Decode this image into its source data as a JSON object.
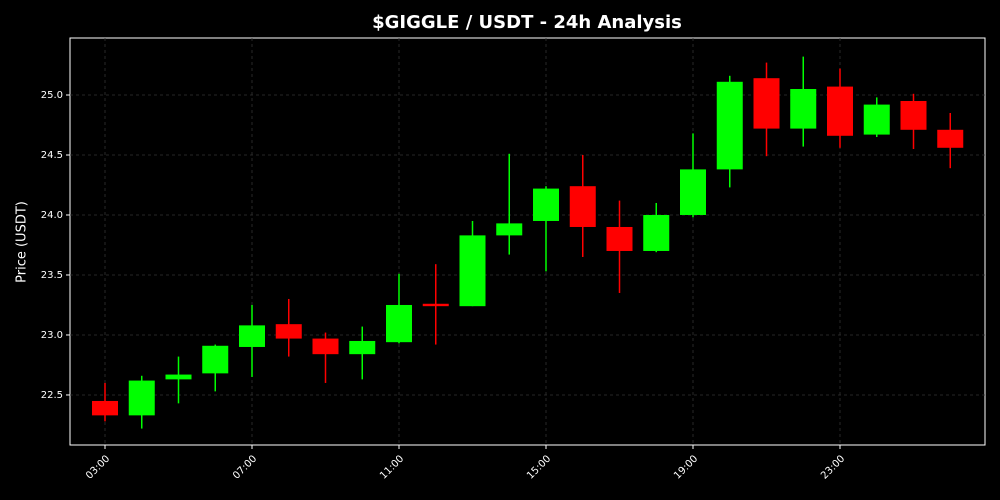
{
  "chart_data": {
    "type": "candlestick",
    "title": "$GIGGLE / USDT - 24h Analysis",
    "y_label": "Price (USDT)",
    "categories": [
      "03:00",
      null,
      null,
      null,
      "07:00",
      null,
      null,
      null,
      "11:00",
      null,
      null,
      null,
      "15:00",
      null,
      null,
      null,
      "19:00",
      null,
      null,
      null,
      "23:00",
      null,
      null,
      null
    ],
    "open": [
      22.45,
      22.33,
      22.63,
      22.68,
      22.9,
      23.09,
      22.97,
      22.84,
      22.94,
      23.26,
      23.24,
      23.83,
      23.95,
      24.24,
      23.9,
      23.7,
      24.0,
      24.38,
      25.14,
      24.72,
      25.07,
      24.67,
      24.95,
      24.71
    ],
    "high": [
      22.6,
      22.66,
      22.82,
      22.92,
      23.25,
      23.3,
      23.02,
      23.07,
      23.51,
      23.59,
      23.95,
      24.51,
      24.24,
      24.5,
      24.12,
      24.1,
      24.68,
      25.16,
      25.27,
      25.32,
      25.22,
      24.98,
      25.01,
      24.85
    ],
    "low": [
      22.28,
      22.22,
      22.43,
      22.53,
      22.65,
      22.82,
      22.6,
      22.63,
      22.93,
      22.92,
      23.24,
      23.67,
      23.53,
      23.65,
      23.35,
      23.69,
      23.98,
      24.23,
      24.49,
      24.57,
      24.56,
      24.65,
      24.55,
      24.39
    ],
    "close": [
      22.33,
      22.62,
      22.67,
      22.91,
      23.08,
      22.97,
      22.84,
      22.95,
      23.25,
      23.24,
      23.83,
      23.93,
      24.22,
      23.9,
      23.7,
      24.0,
      24.38,
      25.11,
      24.72,
      25.05,
      24.66,
      24.92,
      24.71,
      24.56
    ],
    "up_color": "#00ff00",
    "down_color": "#ff0000",
    "ylim": [
      22.083,
      25.475
    ],
    "yticks": [
      22.5,
      {
        "value": 23,
        "label": "23.0"
      },
      23.5,
      {
        "value": 24,
        "label": "24.0"
      },
      24.5,
      {
        "value": 25,
        "label": "25.0"
      }
    ],
    "grid": true
  }
}
